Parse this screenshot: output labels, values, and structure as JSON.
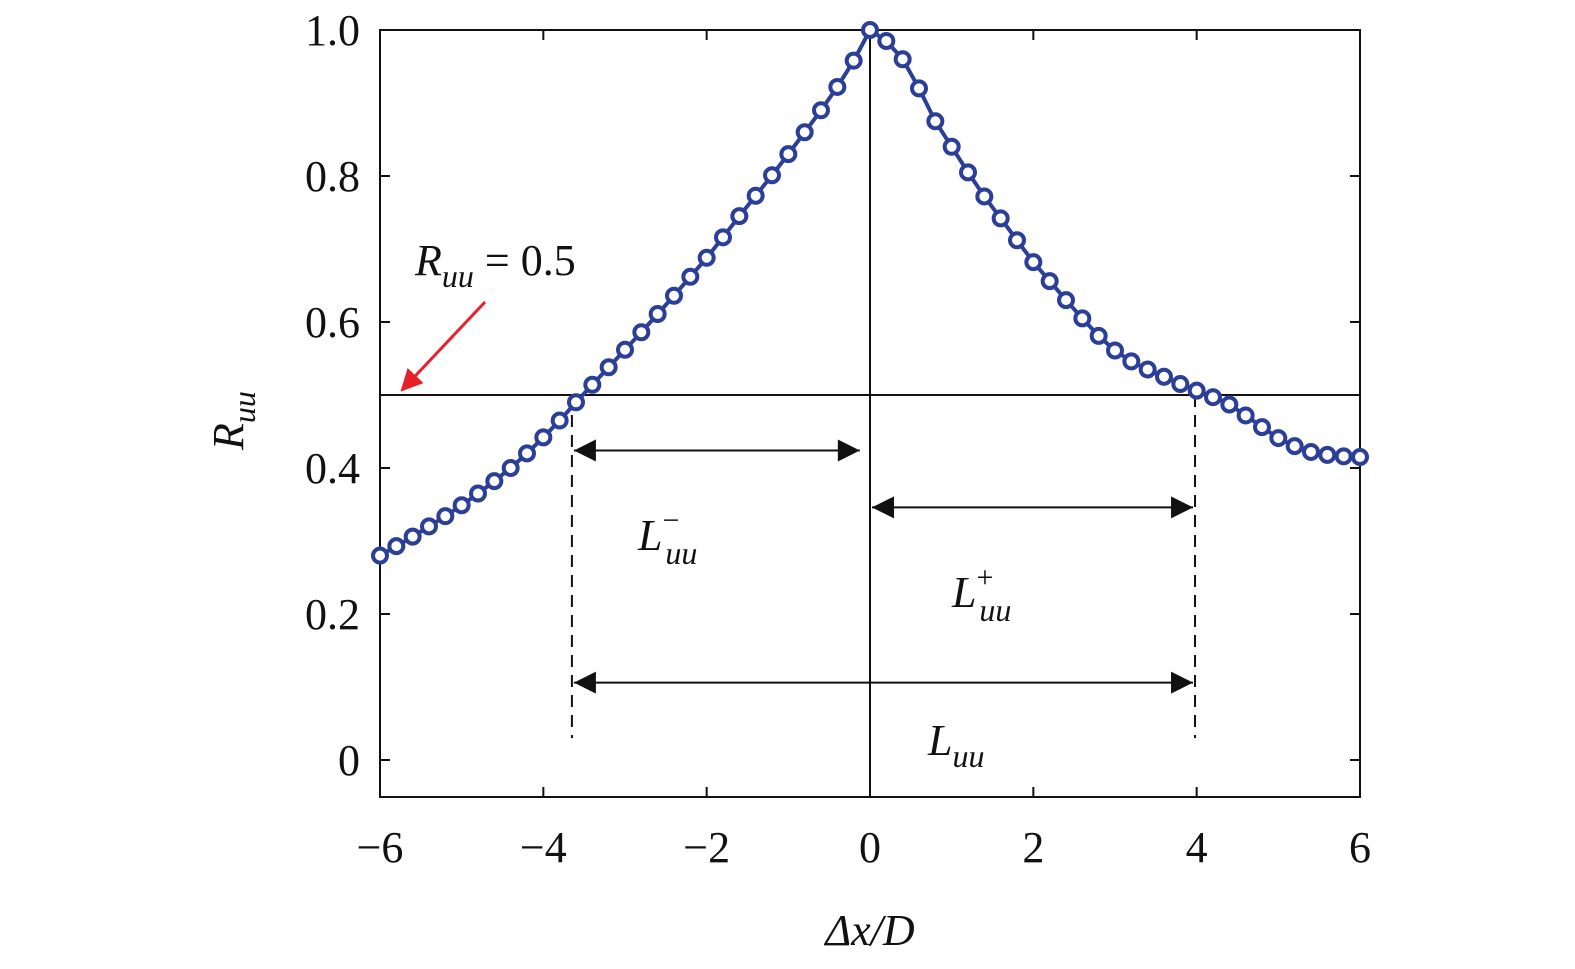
{
  "chart_data": {
    "type": "line",
    "title": "",
    "xlabel": "Δx/D",
    "ylabel_main": "R",
    "ylabel_sub": "uu",
    "xlim": [
      -6,
      6
    ],
    "ylim": [
      -0.05,
      1.0
    ],
    "xticks": [
      -6,
      -4,
      -2,
      0,
      2,
      4,
      6
    ],
    "xtick_labels": [
      "−6",
      "−4",
      "−2",
      "0",
      "2",
      "4",
      "6"
    ],
    "yticks": [
      0,
      0.2,
      0.4,
      0.6,
      0.8,
      1.0
    ],
    "ytick_labels": [
      "0",
      "0.2",
      "0.4",
      "0.6",
      "0.8",
      "1.0"
    ],
    "grid": false,
    "series": [
      {
        "color": "#2b3f99",
        "marker": "open-circle",
        "x": [
          -6,
          -5.8,
          -5.6,
          -5.4,
          -5.2,
          -5,
          -4.8,
          -4.6,
          -4.4,
          -4.2,
          -4,
          -3.8,
          -3.6,
          -3.4,
          -3.2,
          -3,
          -2.8,
          -2.6,
          -2.4,
          -2.2,
          -2,
          -1.8,
          -1.6,
          -1.4,
          -1.2,
          -1,
          -0.8,
          -0.6,
          -0.4,
          -0.2,
          0,
          0.2,
          0.4,
          0.6,
          0.8,
          1,
          1.2,
          1.4,
          1.6,
          1.8,
          2,
          2.2,
          2.4,
          2.6,
          2.8,
          3,
          3.2,
          3.4,
          3.6,
          3.8,
          4,
          4.2,
          4.4,
          4.6,
          4.8,
          5,
          5.2,
          5.4,
          5.6,
          5.8,
          6
        ],
        "y": [
          0.28,
          0.293,
          0.306,
          0.32,
          0.334,
          0.349,
          0.365,
          0.382,
          0.4,
          0.42,
          0.442,
          0.465,
          0.49,
          0.514,
          0.538,
          0.562,
          0.586,
          0.611,
          0.636,
          0.662,
          0.688,
          0.716,
          0.745,
          0.773,
          0.801,
          0.83,
          0.86,
          0.89,
          0.922,
          0.958,
          1.0,
          0.985,
          0.96,
          0.92,
          0.875,
          0.84,
          0.805,
          0.772,
          0.742,
          0.712,
          0.682,
          0.656,
          0.63,
          0.605,
          0.581,
          0.561,
          0.546,
          0.535,
          0.525,
          0.515,
          0.506,
          0.497,
          0.487,
          0.472,
          0.456,
          0.441,
          0.43,
          0.422,
          0.418,
          0.416,
          0.415
        ]
      }
    ],
    "reference_lines": {
      "horizontal_y": 0.5,
      "vertical_x": 0
    },
    "dashed_verticals_x": [
      -3.65,
      3.98
    ],
    "annotations": {
      "threshold_label": {
        "main": "R",
        "sub": "uu",
        "rest": " = 0.5",
        "arrow_color": "#e8202a"
      },
      "L_minus": {
        "main": "L",
        "sub": "uu",
        "sup": "−",
        "from": -3.65,
        "to": -0.1,
        "at_y": 0.424
      },
      "L_plus": {
        "main": "L",
        "sub": "uu",
        "sup": "+",
        "from": 0,
        "to": 3.98,
        "at_y": 0.346
      },
      "L_total": {
        "main": "L",
        "sub": "uu",
        "from": -3.65,
        "to": 3.98,
        "at_y": 0.106
      }
    }
  }
}
